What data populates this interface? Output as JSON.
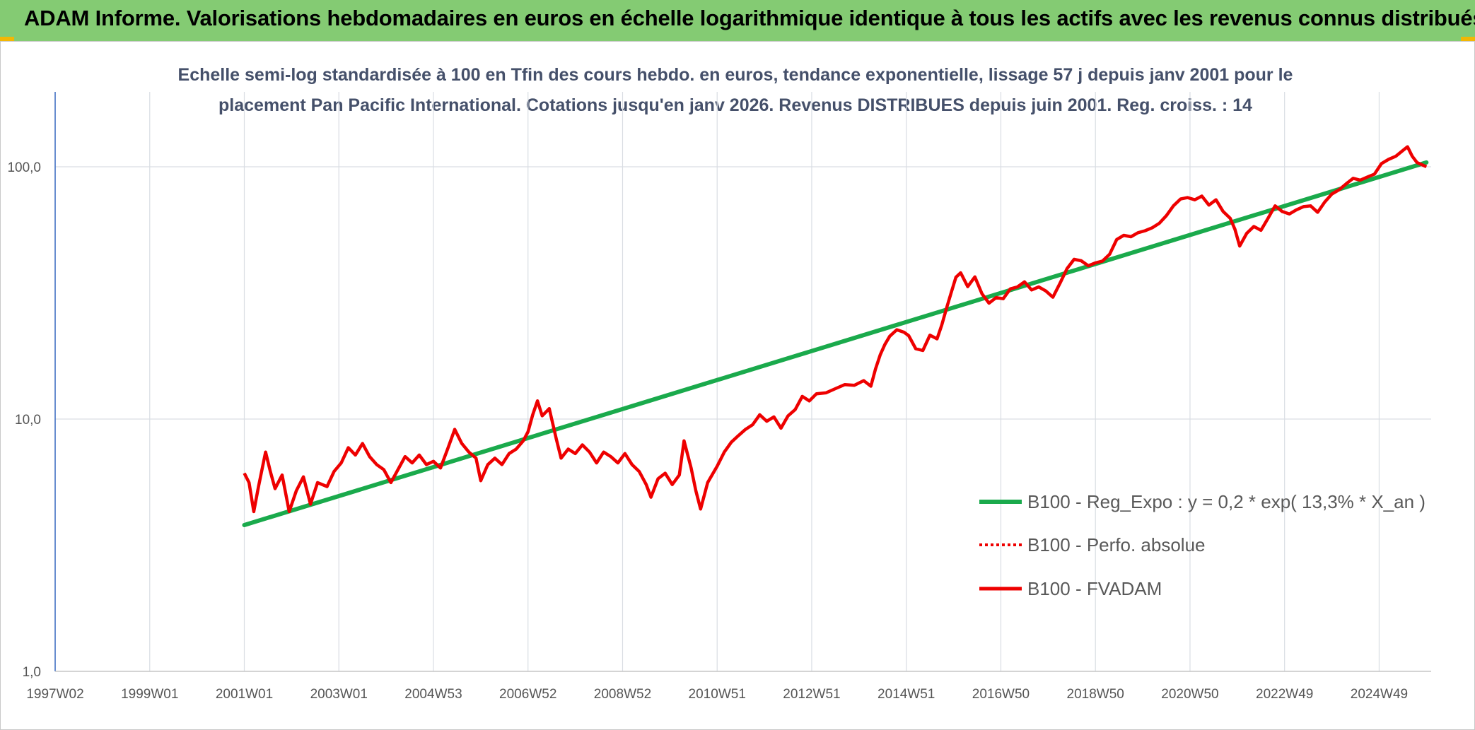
{
  "header": {
    "title": "ADAM Informe. Valorisations hebdomadaires en euros en échelle logarithmique identique à tous les actifs avec les revenus connus distribués"
  },
  "colors": {
    "header_bg": "#84cb73",
    "trend": "#1aaa4c",
    "fvadam": "#ee0000",
    "perfo": "#ee0000",
    "grid": "#d9dde3",
    "axis": "#4472c4"
  },
  "chart_data": {
    "type": "line",
    "title_lines": [
      "Echelle semi-log standardisée à 100 en Tfin des cours hebdo. en euros, tendance exponentielle, lissage 57 j depuis janv 2001 pour le",
      "placement Pan Pacific International. Cotations jusqu'en janv 2026. Revenus DISTRIBUES depuis juin 2001. Reg. croiss. : 14"
    ],
    "y_scale": "log",
    "ylim": [
      1,
      200
    ],
    "xlim": [
      1997.0,
      2026.1
    ],
    "y_ticks": [
      {
        "value": 1,
        "label": "1,0"
      },
      {
        "value": 10,
        "label": "10,0"
      },
      {
        "value": 100,
        "label": "100,0"
      }
    ],
    "x_ticks": [
      {
        "value": 1997.0,
        "label": "1997W02"
      },
      {
        "value": 1999.0,
        "label": "1999W01"
      },
      {
        "value": 2001.0,
        "label": "2001W01"
      },
      {
        "value": 2003.0,
        "label": "2003W01"
      },
      {
        "value": 2005.0,
        "label": "2004W53"
      },
      {
        "value": 2007.0,
        "label": "2006W52"
      },
      {
        "value": 2009.0,
        "label": "2008W52"
      },
      {
        "value": 2011.0,
        "label": "2010W51"
      },
      {
        "value": 2013.0,
        "label": "2012W51"
      },
      {
        "value": 2015.0,
        "label": "2014W51"
      },
      {
        "value": 2017.0,
        "label": "2016W50"
      },
      {
        "value": 2019.0,
        "label": "2018W50"
      },
      {
        "value": 2021.0,
        "label": "2020W50"
      },
      {
        "value": 2023.0,
        "label": "2022W49"
      },
      {
        "value": 2025.0,
        "label": "2024W49"
      }
    ],
    "legend_position": "center-right",
    "series": [
      {
        "name": "B100 - Reg_Expo : y = 0,2 * exp( 13,3% *  X_an )",
        "style": "solid-thick",
        "color": "#1aaa4c",
        "points": [
          [
            2001.0,
            3.8
          ],
          [
            2026.0,
            104
          ]
        ]
      },
      {
        "name": "B100 - Perfo. absolue",
        "style": "dotted",
        "color": "#ee0000",
        "points": []
      },
      {
        "name": "B100 - FVADAM",
        "style": "solid",
        "color": "#ee0000",
        "points": [
          [
            2001.0,
            6.1
          ],
          [
            2001.1,
            5.6
          ],
          [
            2001.2,
            4.3
          ],
          [
            2001.3,
            5.4
          ],
          [
            2001.45,
            7.4
          ],
          [
            2001.55,
            6.2
          ],
          [
            2001.65,
            5.3
          ],
          [
            2001.8,
            6.0
          ],
          [
            2001.95,
            4.3
          ],
          [
            2002.1,
            5.2
          ],
          [
            2002.25,
            5.9
          ],
          [
            2002.4,
            4.6
          ],
          [
            2002.55,
            5.6
          ],
          [
            2002.75,
            5.4
          ],
          [
            2002.9,
            6.2
          ],
          [
            2003.05,
            6.7
          ],
          [
            2003.2,
            7.7
          ],
          [
            2003.35,
            7.2
          ],
          [
            2003.5,
            8.0
          ],
          [
            2003.65,
            7.1
          ],
          [
            2003.8,
            6.6
          ],
          [
            2003.95,
            6.3
          ],
          [
            2004.1,
            5.6
          ],
          [
            2004.25,
            6.3
          ],
          [
            2004.4,
            7.1
          ],
          [
            2004.55,
            6.7
          ],
          [
            2004.7,
            7.2
          ],
          [
            2004.85,
            6.6
          ],
          [
            2005.0,
            6.8
          ],
          [
            2005.15,
            6.4
          ],
          [
            2005.3,
            7.6
          ],
          [
            2005.45,
            9.1
          ],
          [
            2005.6,
            8.0
          ],
          [
            2005.75,
            7.4
          ],
          [
            2005.9,
            7.0
          ],
          [
            2006.0,
            5.7
          ],
          [
            2006.15,
            6.6
          ],
          [
            2006.3,
            7.0
          ],
          [
            2006.45,
            6.6
          ],
          [
            2006.6,
            7.3
          ],
          [
            2006.75,
            7.6
          ],
          [
            2006.9,
            8.2
          ],
          [
            2007.0,
            8.9
          ],
          [
            2007.1,
            10.4
          ],
          [
            2007.2,
            11.8
          ],
          [
            2007.3,
            10.3
          ],
          [
            2007.45,
            11.0
          ],
          [
            2007.6,
            8.3
          ],
          [
            2007.7,
            7.0
          ],
          [
            2007.85,
            7.6
          ],
          [
            2008.0,
            7.3
          ],
          [
            2008.15,
            7.9
          ],
          [
            2008.3,
            7.4
          ],
          [
            2008.45,
            6.7
          ],
          [
            2008.6,
            7.4
          ],
          [
            2008.75,
            7.1
          ],
          [
            2008.9,
            6.7
          ],
          [
            2009.05,
            7.3
          ],
          [
            2009.2,
            6.6
          ],
          [
            2009.35,
            6.2
          ],
          [
            2009.5,
            5.5
          ],
          [
            2009.6,
            4.9
          ],
          [
            2009.75,
            5.8
          ],
          [
            2009.9,
            6.1
          ],
          [
            2010.05,
            5.5
          ],
          [
            2010.2,
            6.0
          ],
          [
            2010.3,
            8.2
          ],
          [
            2010.45,
            6.4
          ],
          [
            2010.55,
            5.2
          ],
          [
            2010.65,
            4.4
          ],
          [
            2010.8,
            5.6
          ],
          [
            2011.0,
            6.5
          ],
          [
            2011.15,
            7.4
          ],
          [
            2011.3,
            8.1
          ],
          [
            2011.45,
            8.6
          ],
          [
            2011.6,
            9.1
          ],
          [
            2011.75,
            9.5
          ],
          [
            2011.9,
            10.4
          ],
          [
            2012.05,
            9.8
          ],
          [
            2012.2,
            10.2
          ],
          [
            2012.35,
            9.2
          ],
          [
            2012.5,
            10.3
          ],
          [
            2012.65,
            10.9
          ],
          [
            2012.8,
            12.3
          ],
          [
            2012.95,
            11.8
          ],
          [
            2013.1,
            12.6
          ],
          [
            2013.3,
            12.7
          ],
          [
            2013.5,
            13.2
          ],
          [
            2013.7,
            13.7
          ],
          [
            2013.9,
            13.6
          ],
          [
            2014.1,
            14.2
          ],
          [
            2014.25,
            13.5
          ],
          [
            2014.35,
            15.8
          ],
          [
            2014.45,
            18.0
          ],
          [
            2014.55,
            19.8
          ],
          [
            2014.65,
            21.3
          ],
          [
            2014.8,
            22.6
          ],
          [
            2014.95,
            22.1
          ],
          [
            2015.05,
            21.4
          ],
          [
            2015.2,
            19.0
          ],
          [
            2015.35,
            18.7
          ],
          [
            2015.5,
            21.5
          ],
          [
            2015.65,
            20.8
          ],
          [
            2015.75,
            23.6
          ],
          [
            2015.85,
            27.5
          ],
          [
            2015.95,
            31.7
          ],
          [
            2016.05,
            36.5
          ],
          [
            2016.15,
            38.0
          ],
          [
            2016.3,
            33.5
          ],
          [
            2016.45,
            36.6
          ],
          [
            2016.6,
            31.4
          ],
          [
            2016.75,
            28.8
          ],
          [
            2016.9,
            30.3
          ],
          [
            2017.05,
            30.0
          ],
          [
            2017.2,
            32.8
          ],
          [
            2017.35,
            33.4
          ],
          [
            2017.5,
            35.0
          ],
          [
            2017.65,
            32.5
          ],
          [
            2017.8,
            33.4
          ],
          [
            2017.95,
            32.2
          ],
          [
            2018.1,
            30.4
          ],
          [
            2018.25,
            34.5
          ],
          [
            2018.4,
            39.5
          ],
          [
            2018.55,
            43.0
          ],
          [
            2018.7,
            42.4
          ],
          [
            2018.85,
            40.5
          ],
          [
            2019.0,
            41.6
          ],
          [
            2019.15,
            42.3
          ],
          [
            2019.3,
            45.0
          ],
          [
            2019.45,
            51.5
          ],
          [
            2019.6,
            53.5
          ],
          [
            2019.75,
            52.8
          ],
          [
            2019.9,
            54.8
          ],
          [
            2020.05,
            55.8
          ],
          [
            2020.2,
            57.3
          ],
          [
            2020.35,
            59.7
          ],
          [
            2020.5,
            64.0
          ],
          [
            2020.65,
            70.0
          ],
          [
            2020.8,
            74.5
          ],
          [
            2020.95,
            75.5
          ],
          [
            2021.1,
            74.0
          ],
          [
            2021.25,
            76.5
          ],
          [
            2021.4,
            70.5
          ],
          [
            2021.55,
            74.0
          ],
          [
            2021.7,
            66.5
          ],
          [
            2021.85,
            62.5
          ],
          [
            2021.95,
            56.5
          ],
          [
            2022.05,
            48.5
          ],
          [
            2022.2,
            54.5
          ],
          [
            2022.35,
            58.0
          ],
          [
            2022.5,
            56.0
          ],
          [
            2022.65,
            62.5
          ],
          [
            2022.8,
            70.0
          ],
          [
            2022.95,
            66.5
          ],
          [
            2023.1,
            65.0
          ],
          [
            2023.25,
            67.5
          ],
          [
            2023.4,
            69.5
          ],
          [
            2023.55,
            70.0
          ],
          [
            2023.7,
            66.0
          ],
          [
            2023.85,
            72.5
          ],
          [
            2024.0,
            78.0
          ],
          [
            2024.15,
            81.0
          ],
          [
            2024.3,
            85.5
          ],
          [
            2024.45,
            90.0
          ],
          [
            2024.6,
            88.5
          ],
          [
            2024.75,
            91.0
          ],
          [
            2024.9,
            93.5
          ],
          [
            2025.05,
            103.0
          ],
          [
            2025.2,
            107.0
          ],
          [
            2025.35,
            110.0
          ],
          [
            2025.5,
            116.0
          ],
          [
            2025.6,
            120.0
          ],
          [
            2025.7,
            110.0
          ],
          [
            2025.8,
            104.0
          ],
          [
            2025.9,
            102.0
          ],
          [
            2026.0,
            100.0
          ]
        ]
      }
    ]
  }
}
